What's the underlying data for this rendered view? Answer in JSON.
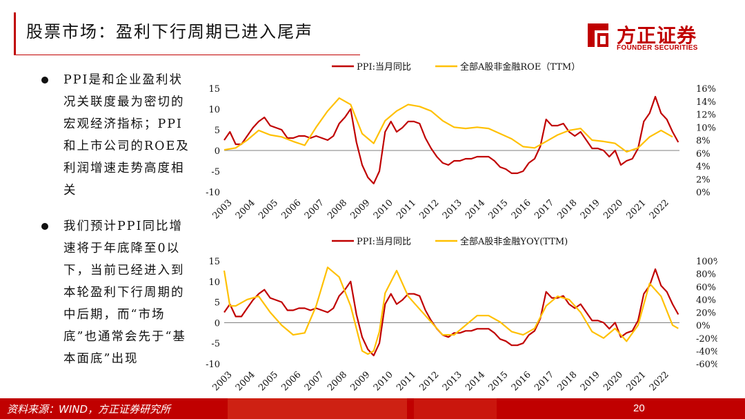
{
  "header": {
    "title": "股票市场：盈利下行周期已进入尾声",
    "logo_cn": "方正证券",
    "logo_en": "FOUNDER SECURITIES"
  },
  "bullets": [
    "PPI是和企业盈利状况关联度最为密切的宏观经济指标；PPI和上市公司的ROE及利润增速走势高度相关",
    "我们预计PPI同比增速将于年底降至0以下，当前已经进入到本轮盈利下行周期的中后期，而“市场底”也通常会先于“基本面底”出现"
  ],
  "footer": {
    "source": "资料来源：WIND，方正证券研究所",
    "page": "20"
  },
  "colors": {
    "ppi": "#c00000",
    "roe": "#ffc000",
    "accent": "#c00000"
  },
  "chart_data": [
    {
      "type": "line",
      "x_tick_labels": [
        "2003",
        "2004",
        "2005",
        "2006",
        "2007",
        "2008",
        "2009",
        "2010",
        "2011",
        "2012",
        "2013",
        "2014",
        "2015",
        "2016",
        "2017",
        "2018",
        "2019",
        "2020",
        "2021",
        "2022"
      ],
      "x_range": [
        2003,
        2022.8
      ],
      "y_left": {
        "range": [
          -10,
          15
        ],
        "ticks": [
          "15",
          "10",
          "5",
          "0",
          "-5",
          "-10"
        ]
      },
      "y_right": {
        "range": [
          0,
          16
        ],
        "ticks": [
          "16%",
          "14%",
          "12%",
          "10%",
          "8%",
          "6%",
          "4%",
          "2%",
          "0%"
        ]
      },
      "grid": false,
      "legend_position": "top",
      "series": [
        {
          "name": "PPI:当月同比",
          "axis": "left",
          "x": [
            2003.0,
            2003.25,
            2003.5,
            2003.75,
            2004.0,
            2004.25,
            2004.5,
            2004.75,
            2005.0,
            2005.25,
            2005.5,
            2005.75,
            2006.0,
            2006.25,
            2006.5,
            2006.75,
            2007.0,
            2007.25,
            2007.5,
            2007.75,
            2008.0,
            2008.25,
            2008.5,
            2008.75,
            2009.0,
            2009.25,
            2009.5,
            2009.75,
            2010.0,
            2010.25,
            2010.5,
            2010.75,
            2011.0,
            2011.25,
            2011.5,
            2011.75,
            2012.0,
            2012.25,
            2012.5,
            2012.75,
            2013.0,
            2013.25,
            2013.5,
            2013.75,
            2014.0,
            2014.25,
            2014.5,
            2014.75,
            2015.0,
            2015.25,
            2015.5,
            2015.75,
            2016.0,
            2016.25,
            2016.5,
            2016.75,
            2017.0,
            2017.25,
            2017.5,
            2017.75,
            2018.0,
            2018.25,
            2018.5,
            2018.75,
            2019.0,
            2019.25,
            2019.5,
            2019.75,
            2020.0,
            2020.25,
            2020.5,
            2020.75,
            2021.0,
            2021.25,
            2021.5,
            2021.75,
            2022.0,
            2022.25,
            2022.5,
            2022.75
          ],
          "values": [
            2.5,
            4.5,
            1.5,
            1.5,
            3.5,
            5.5,
            7.0,
            8.0,
            6.0,
            5.5,
            5.0,
            3.0,
            3.0,
            3.5,
            3.5,
            3.0,
            3.5,
            3.0,
            2.5,
            3.5,
            6.5,
            8.0,
            10.0,
            2.0,
            -3.5,
            -6.5,
            -8.0,
            -5.0,
            4.5,
            7.0,
            4.5,
            5.5,
            7.0,
            7.0,
            6.5,
            3.0,
            0.5,
            -1.5,
            -3.0,
            -3.5,
            -2.5,
            -2.5,
            -2.0,
            -2.0,
            -1.5,
            -1.5,
            -1.5,
            -2.5,
            -4.0,
            -4.5,
            -5.5,
            -5.5,
            -5.0,
            -3.0,
            -2.0,
            1.0,
            7.5,
            6.0,
            6.0,
            6.5,
            4.5,
            3.5,
            4.5,
            2.5,
            0.5,
            0.5,
            0.0,
            -1.5,
            0.0,
            -3.5,
            -2.5,
            -2.0,
            0.5,
            7.0,
            9.0,
            13.0,
            9.0,
            7.5,
            4.5,
            2.0
          ]
        },
        {
          "name": "全部A股非金融ROE（TTM）",
          "axis": "right",
          "x": [
            2003.0,
            2003.5,
            2004.0,
            2004.5,
            2005.0,
            2005.5,
            2006.0,
            2006.5,
            2007.0,
            2007.5,
            2008.0,
            2008.5,
            2009.0,
            2009.5,
            2010.0,
            2010.5,
            2011.0,
            2011.5,
            2012.0,
            2012.5,
            2013.0,
            2013.5,
            2014.0,
            2014.5,
            2015.0,
            2015.5,
            2016.0,
            2016.5,
            2017.0,
            2017.5,
            2018.0,
            2018.5,
            2019.0,
            2019.5,
            2020.0,
            2020.5,
            2021.0,
            2021.5,
            2022.0,
            2022.5
          ],
          "values": [
            6.5,
            6.8,
            8.0,
            9.5,
            8.8,
            8.5,
            7.8,
            7.2,
            10.0,
            12.5,
            14.5,
            13.5,
            9.0,
            7.5,
            11.0,
            12.5,
            13.5,
            13.2,
            12.5,
            11.0,
            10.0,
            9.8,
            10.0,
            9.8,
            9.0,
            8.2,
            7.0,
            6.8,
            7.8,
            8.8,
            9.5,
            9.8,
            8.0,
            7.8,
            7.5,
            6.2,
            6.8,
            8.5,
            9.5,
            8.5
          ]
        }
      ]
    },
    {
      "type": "line",
      "x_tick_labels": [
        "2003",
        "2004",
        "2005",
        "2006",
        "2007",
        "2008",
        "2009",
        "2010",
        "2011",
        "2012",
        "2013",
        "2014",
        "2015",
        "2016",
        "2017",
        "2018",
        "2019",
        "2020",
        "2021",
        "2022"
      ],
      "x_range": [
        2003,
        2022.8
      ],
      "y_left": {
        "range": [
          -10,
          15
        ],
        "ticks": [
          "15",
          "10",
          "5",
          "0",
          "-5",
          "-10"
        ]
      },
      "y_right": {
        "range": [
          -60,
          100
        ],
        "ticks": [
          "100%",
          "80%",
          "60%",
          "40%",
          "20%",
          "0%",
          "-20%",
          "-40%",
          "-60%"
        ]
      },
      "grid": false,
      "legend_position": "top",
      "series": [
        {
          "name": "PPI:当月同比",
          "axis": "left",
          "x": [
            2003.0,
            2003.25,
            2003.5,
            2003.75,
            2004.0,
            2004.25,
            2004.5,
            2004.75,
            2005.0,
            2005.25,
            2005.5,
            2005.75,
            2006.0,
            2006.25,
            2006.5,
            2006.75,
            2007.0,
            2007.25,
            2007.5,
            2007.75,
            2008.0,
            2008.25,
            2008.5,
            2008.75,
            2009.0,
            2009.25,
            2009.5,
            2009.75,
            2010.0,
            2010.25,
            2010.5,
            2010.75,
            2011.0,
            2011.25,
            2011.5,
            2011.75,
            2012.0,
            2012.25,
            2012.5,
            2012.75,
            2013.0,
            2013.25,
            2013.5,
            2013.75,
            2014.0,
            2014.25,
            2014.5,
            2014.75,
            2015.0,
            2015.25,
            2015.5,
            2015.75,
            2016.0,
            2016.25,
            2016.5,
            2016.75,
            2017.0,
            2017.25,
            2017.5,
            2017.75,
            2018.0,
            2018.25,
            2018.5,
            2018.75,
            2019.0,
            2019.25,
            2019.5,
            2019.75,
            2020.0,
            2020.25,
            2020.5,
            2020.75,
            2021.0,
            2021.25,
            2021.5,
            2021.75,
            2022.0,
            2022.25,
            2022.5,
            2022.75
          ],
          "values": [
            2.5,
            4.5,
            1.5,
            1.5,
            3.5,
            5.5,
            7.0,
            8.0,
            6.0,
            5.5,
            5.0,
            3.0,
            3.0,
            3.5,
            3.5,
            3.0,
            3.5,
            3.0,
            2.5,
            3.5,
            6.5,
            8.0,
            10.0,
            2.0,
            -3.5,
            -6.5,
            -8.0,
            -5.0,
            4.5,
            7.0,
            4.5,
            5.5,
            7.0,
            7.0,
            6.5,
            3.0,
            0.5,
            -1.5,
            -3.0,
            -3.5,
            -2.5,
            -2.5,
            -2.0,
            -2.0,
            -1.5,
            -1.5,
            -1.5,
            -2.5,
            -4.0,
            -4.5,
            -5.5,
            -5.5,
            -5.0,
            -3.0,
            -2.0,
            1.0,
            7.5,
            6.0,
            6.0,
            6.5,
            4.5,
            3.5,
            4.5,
            2.5,
            0.5,
            0.5,
            0.0,
            -1.5,
            0.0,
            -3.5,
            -2.5,
            -2.0,
            0.5,
            7.0,
            9.0,
            13.0,
            9.0,
            7.5,
            4.5,
            2.0
          ]
        },
        {
          "name": "全部A股非金融YOY(TTM)",
          "axis": "right",
          "x": [
            2003.0,
            2003.25,
            2003.5,
            2004.0,
            2004.5,
            2005.0,
            2005.5,
            2006.0,
            2006.5,
            2007.0,
            2007.5,
            2008.0,
            2008.5,
            2009.0,
            2009.25,
            2009.5,
            2009.75,
            2010.0,
            2010.5,
            2011.0,
            2011.5,
            2012.0,
            2012.5,
            2013.0,
            2013.5,
            2014.0,
            2014.5,
            2015.0,
            2015.5,
            2016.0,
            2016.5,
            2017.0,
            2017.5,
            2018.0,
            2018.5,
            2019.0,
            2019.5,
            2020.0,
            2020.5,
            2021.0,
            2021.5,
            2022.0,
            2022.5,
            2022.75
          ],
          "values": [
            85,
            30,
            30,
            40,
            45,
            20,
            0,
            -15,
            -12,
            30,
            90,
            75,
            30,
            -40,
            -45,
            -40,
            -10,
            50,
            85,
            45,
            25,
            5,
            -15,
            -15,
            0,
            15,
            15,
            5,
            -10,
            -15,
            -5,
            30,
            45,
            40,
            20,
            -10,
            -20,
            -5,
            -25,
            0,
            65,
            45,
            0,
            -5
          ]
        }
      ]
    }
  ]
}
